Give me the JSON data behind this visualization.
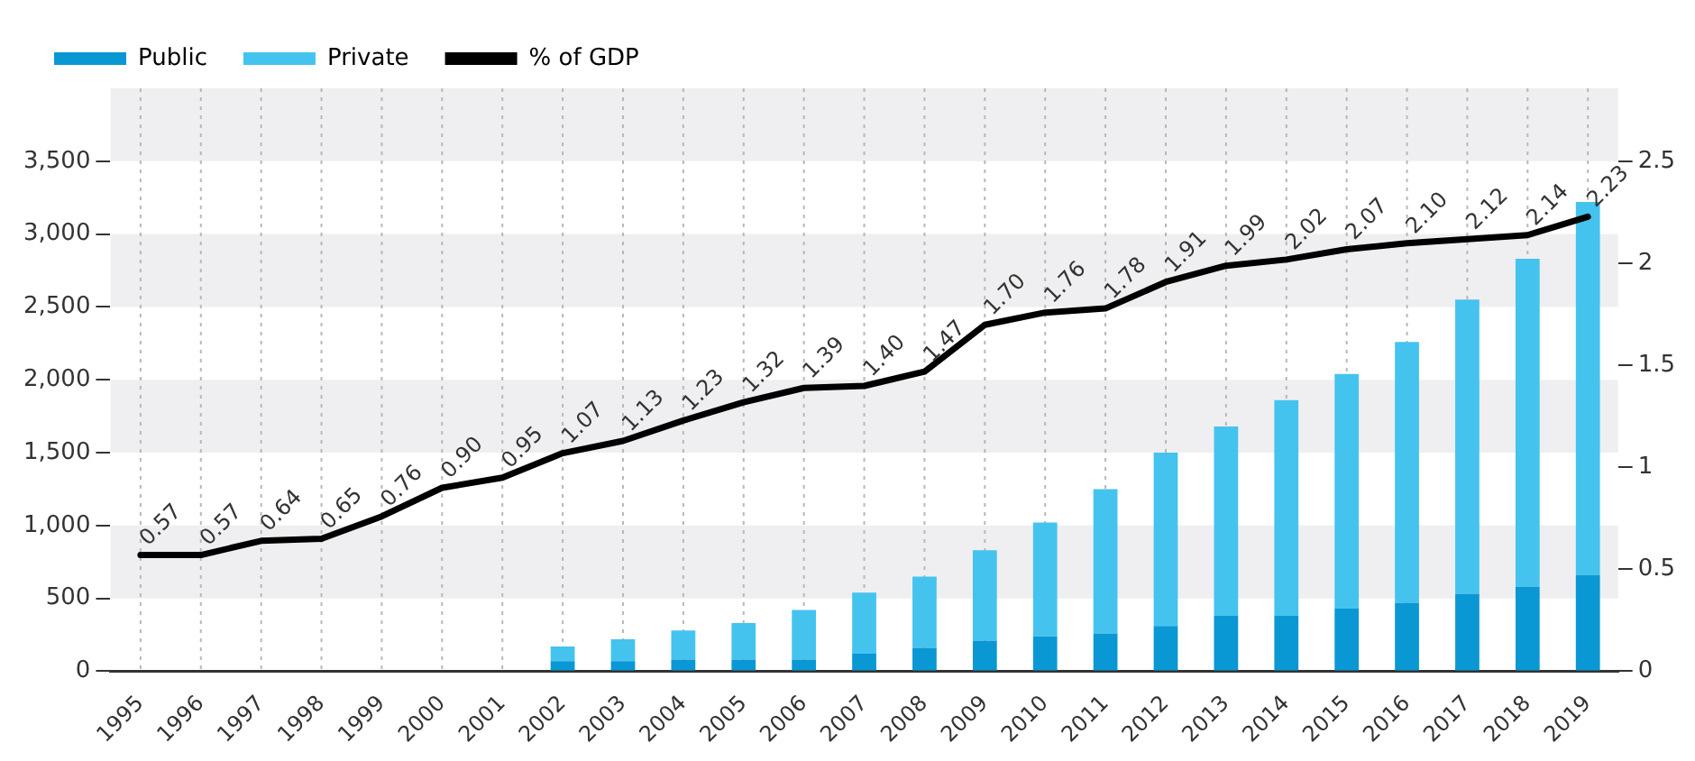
{
  "chart_data": {
    "type": "bar",
    "stacked": true,
    "legend": "top left",
    "grid": "x",
    "line_style": "solid",
    "marker": "none",
    "categories": [
      "1995",
      "1996",
      "1997",
      "1998",
      "1999",
      "2000",
      "2001",
      "2002",
      "2003",
      "2004",
      "2005",
      "2006",
      "2007",
      "2008",
      "2009",
      "2010",
      "2011",
      "2012",
      "2013",
      "2014",
      "2015",
      "2016",
      "2017",
      "2018",
      "2019"
    ],
    "series": [
      {
        "name": "Public",
        "color": "#0a98d4",
        "values": [
          null,
          null,
          null,
          null,
          null,
          null,
          null,
          70,
          70,
          80,
          80,
          80,
          120,
          160,
          210,
          240,
          260,
          310,
          380,
          380,
          430,
          470,
          530,
          580,
          660
        ]
      },
      {
        "name": "Private",
        "color": "#45c3ef",
        "values": [
          null,
          null,
          null,
          null,
          null,
          null,
          null,
          100,
          150,
          200,
          250,
          340,
          420,
          490,
          620,
          780,
          990,
          1190,
          1300,
          1480,
          1610,
          1790,
          2020,
          2250,
          2560
        ]
      },
      {
        "name": "% of GDP",
        "type": "line",
        "axis": "y2",
        "color": "#000000",
        "values": [
          0.57,
          0.57,
          0.64,
          0.65,
          0.76,
          0.9,
          0.95,
          1.07,
          1.13,
          1.23,
          1.32,
          1.39,
          1.4,
          1.47,
          1.7,
          1.76,
          1.78,
          1.91,
          1.99,
          2.02,
          2.07,
          2.1,
          2.12,
          2.14,
          2.23
        ],
        "value_labels": [
          "0.57",
          "0.57",
          "0.64",
          "0.65",
          "0.76",
          "0.90",
          "0.95",
          "1.07",
          "1.13",
          "1.23",
          "1.32",
          "1.39",
          "1.40",
          "1.47",
          "1.70",
          "1.76",
          "1.78",
          "1.91",
          "1.99",
          "2.02",
          "2.07",
          "2.10",
          "2.12",
          "2.14",
          "2.23"
        ]
      }
    ],
    "ylim": [
      0,
      4000
    ],
    "yticks": [
      0,
      500,
      {
        "value": 1000,
        "label": "1,000"
      },
      {
        "value": 1500,
        "label": "1,500"
      },
      {
        "value": 2000,
        "label": "2,000"
      },
      {
        "value": 2500,
        "label": "2,500"
      },
      {
        "value": 3000,
        "label": "3,000"
      },
      {
        "value": 3500,
        "label": "3,500"
      }
    ],
    "y2lim": [
      0,
      2.86
    ],
    "y2ticks": [
      0,
      0.5,
      1,
      1.5,
      2,
      2.5
    ],
    "bands": [
      {
        "axis": "y",
        "from": 500,
        "to": 1000,
        "color": "#efeff1"
      },
      {
        "axis": "y",
        "from": 1500,
        "to": 2000,
        "color": "#efeff1"
      },
      {
        "axis": "y",
        "from": 2500,
        "to": 3000,
        "color": "#efeff1"
      },
      {
        "axis": "y",
        "from": 3500,
        "to": 4000,
        "color": "#efeff1"
      }
    ]
  }
}
